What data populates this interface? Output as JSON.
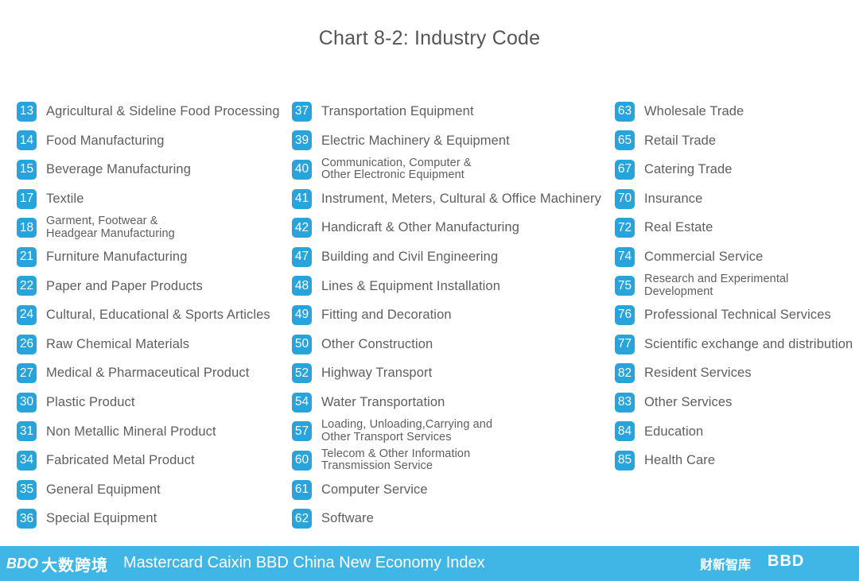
{
  "title": "Chart 8-2: Industry Code",
  "columns": [
    [
      {
        "code": "13",
        "label": "Agricultural & Sideline Food Processing"
      },
      {
        "code": "14",
        "label": "Food Manufacturing"
      },
      {
        "code": "15",
        "label": "Beverage Manufacturing"
      },
      {
        "code": "17",
        "label": "Textile"
      },
      {
        "code": "18",
        "label": "Garment, Footwear &\nHeadgear Manufacturing"
      },
      {
        "code": "21",
        "label": "Furniture Manufacturing"
      },
      {
        "code": "22",
        "label": "Paper and Paper Products"
      },
      {
        "code": "24",
        "label": "Cultural, Educational & Sports Articles"
      },
      {
        "code": "26",
        "label": "Raw Chemical Materials"
      },
      {
        "code": "27",
        "label": "Medical & Pharmaceutical Product"
      },
      {
        "code": "30",
        "label": "Plastic Product"
      },
      {
        "code": "31",
        "label": "Non Metallic Mineral Product"
      },
      {
        "code": "34",
        "label": "Fabricated Metal Product"
      },
      {
        "code": "35",
        "label": "General Equipment"
      },
      {
        "code": "36",
        "label": "Special Equipment"
      }
    ],
    [
      {
        "code": "37",
        "label": "Transportation Equipment"
      },
      {
        "code": "39",
        "label": "Electric Machinery & Equipment"
      },
      {
        "code": "40",
        "label": "Communication, Computer &\nOther Electronic Equipment"
      },
      {
        "code": "41",
        "label": "Instrument, Meters, Cultural & Office Machinery"
      },
      {
        "code": "42",
        "label": "Handicraft & Other Manufacturing"
      },
      {
        "code": "47",
        "label": "Building and Civil Engineering"
      },
      {
        "code": "48",
        "label": "Lines & Equipment Installation"
      },
      {
        "code": "49",
        "label": "Fitting and Decoration"
      },
      {
        "code": "50",
        "label": "Other Construction"
      },
      {
        "code": "52",
        "label": "Highway Transport"
      },
      {
        "code": "54",
        "label": "Water Transportation"
      },
      {
        "code": "57",
        "label": "Loading, Unloading,Carrying and\nOther Transport Services"
      },
      {
        "code": "60",
        "label": "Telecom & Other Information\nTransmission Service"
      },
      {
        "code": "61",
        "label": "Computer Service"
      },
      {
        "code": "62",
        "label": "Software"
      }
    ],
    [
      {
        "code": "63",
        "label": "Wholesale Trade"
      },
      {
        "code": "65",
        "label": "Retail Trade"
      },
      {
        "code": "67",
        "label": "Catering Trade"
      },
      {
        "code": "70",
        "label": "Insurance"
      },
      {
        "code": "72",
        "label": "Real Estate"
      },
      {
        "code": "74",
        "label": "Commercial Service"
      },
      {
        "code": "75",
        "label": "Research and Experimental\nDevelopment"
      },
      {
        "code": "76",
        "label": "Professional Technical Services"
      },
      {
        "code": "77",
        "label": "Scientific exchange and distribution"
      },
      {
        "code": "82",
        "label": "Resident Services"
      },
      {
        "code": "83",
        "label": "Other Services"
      },
      {
        "code": "84",
        "label": "Education"
      },
      {
        "code": "85",
        "label": "Health Care"
      }
    ]
  ],
  "footer": {
    "brand_mark": "BDO",
    "brand_cn": "大数跨境",
    "title": "Mastercard Caixin BBD China New Economy Index",
    "logo_right_1": "财新智库",
    "logo_right_2": "BBD"
  },
  "colors": {
    "badge": "#27a4dc",
    "footer_bar": "#40b6e6"
  }
}
